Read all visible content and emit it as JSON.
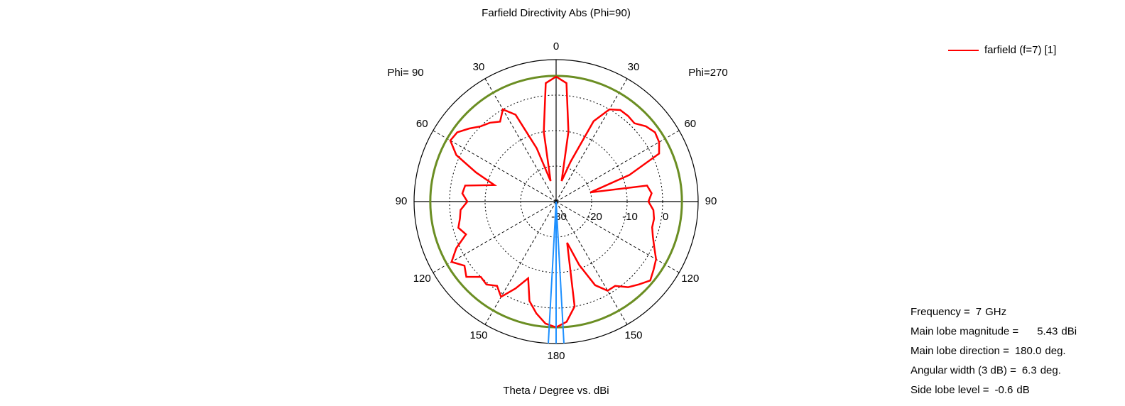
{
  "chart_data": {
    "type": "polar",
    "title": "Farfield Directivity Abs (Phi=90)",
    "xlabel": "Theta / Degree vs. dBi",
    "left_label": "Phi= 90",
    "right_label": "Phi=270",
    "rlim": [
      -30,
      10
    ],
    "rticks": [
      -30,
      -20,
      -10,
      0
    ],
    "angle_ticks": [
      0,
      30,
      60,
      90,
      120,
      150,
      180,
      {
        "value": -30,
        "label": "30"
      },
      {
        "value": -60,
        "label": "60"
      },
      {
        "value": -90,
        "label": "90"
      },
      {
        "value": -120,
        "label": "120"
      },
      {
        "value": -150,
        "label": "150"
      }
    ],
    "x": [
      -180,
      -175,
      -170,
      -165,
      -160,
      -155,
      -150,
      -145,
      -140,
      -135,
      -130,
      -125,
      -120,
      -115,
      -110,
      -105,
      -100,
      -95,
      -90,
      -85,
      -80,
      -75,
      -70,
      -65,
      -60,
      -55,
      -50,
      -45,
      -40,
      -35,
      -30,
      -25,
      -20,
      -15,
      -10,
      -5,
      0,
      5,
      10,
      15,
      20,
      25,
      30,
      35,
      40,
      45,
      50,
      55,
      60,
      65,
      70,
      75,
      80,
      85,
      90,
      95,
      100,
      105,
      110,
      115,
      120,
      125,
      130,
      135,
      140,
      145,
      150,
      155,
      160,
      165,
      170,
      175,
      180
    ],
    "series": [
      {
        "name": "farfield (f=7) [1]",
        "color": "#ff0000",
        "values": [
          5.43,
          4.5,
          2,
          -1,
          -7,
          -3,
          1,
          -1,
          0.5,
          0,
          3,
          1.5,
          4,
          1,
          -3,
          -1.5,
          -2.5,
          -3,
          -5,
          -3.5,
          -4,
          -12,
          -6,
          1,
          4.4,
          4,
          2,
          0,
          -1,
          -2.5,
          0,
          -3,
          -14,
          -24,
          -10,
          3.5,
          5.2,
          3.5,
          -10,
          -24,
          -18,
          -5,
          0,
          1.5,
          1.5,
          1.2,
          3,
          4,
          3.5,
          2,
          -8,
          -20,
          -4,
          -3,
          -4,
          -2.5,
          -2,
          -2,
          -1,
          0.5,
          2.5,
          3.5,
          4.6,
          3,
          1.5,
          -1,
          -1,
          -4,
          -11,
          -18,
          0,
          4,
          5.43
        ]
      }
    ],
    "info": [
      {
        "label": "Frequency =",
        "value": 7,
        "unit": "GHz"
      },
      {
        "label": "Main lobe magnitude =",
        "value": 5.43,
        "unit": "dBi"
      },
      {
        "label": "Main lobe direction =",
        "value": 180,
        "value_label": "180.0",
        "unit": "deg."
      },
      {
        "label": "Angular width (3 dB) =",
        "value": 6.3,
        "unit": "deg."
      },
      {
        "label": "Side lobe level =",
        "value": -0.6,
        "unit": "dB"
      }
    ]
  }
}
